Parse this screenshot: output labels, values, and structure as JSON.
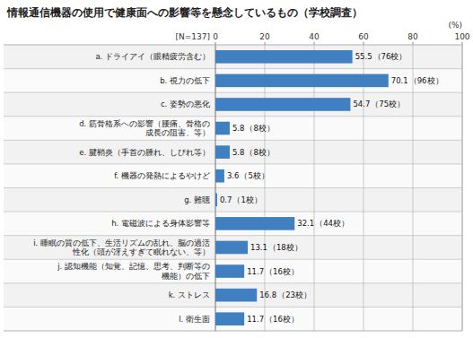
{
  "chart_data": {
    "type": "bar",
    "orientation": "horizontal",
    "title": "情報通信機器の使用で健康面への影響等を懸念しているもの（学校調査）",
    "subtitle": "[N=137]",
    "xlabel": "(%)",
    "categories": [
      "a. ドライアイ（眼精疲労含む）",
      "b. 視力の低下",
      "c. 姿勢の悪化",
      "d. 筋骨格系への影響（腰痛、骨格の\n成長の阻害、等）",
      "e. 腱鞘炎（手首の腫れ、しびれ等）",
      "f. 機器の発熱によるやけど",
      "g. 難聴",
      "h. 電磁波による身体影響等",
      "i. 睡眠の質の低下、生活リズムの乱れ、脳の過活\n性化（頭が冴えすぎて眠れない、等）",
      "j. 認知機能（知覚、記憶、思考、判断等の\n機能）の低下",
      "k. ストレス",
      "l. 衛生面"
    ],
    "values": [
      55.5,
      70.1,
      54.7,
      5.8,
      5.8,
      3.6,
      0.7,
      32.1,
      13.1,
      11.7,
      16.8,
      11.7
    ],
    "annotations": [
      "（76校）",
      "（96校）",
      "（75校）",
      "（8校）",
      "（8校）",
      "（5校）",
      "（1校）",
      "（44校）",
      "（18校）",
      "（16校）",
      "（23校）",
      "（16校）"
    ],
    "color": "#4080C0",
    "xlim": [
      0,
      100
    ],
    "xticks": [
      0,
      20,
      40,
      60,
      80,
      100
    ],
    "grid": true,
    "data_labels": true
  }
}
